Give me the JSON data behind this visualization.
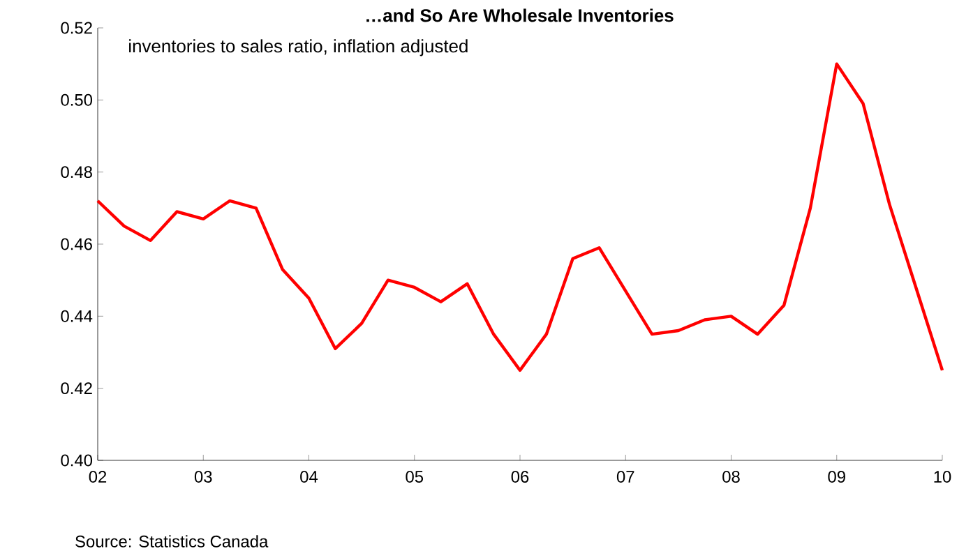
{
  "chart_data": {
    "type": "line",
    "title": "…and So Are Wholesale Inventories",
    "subtitle": "inventories to sales ratio, inflation adjusted",
    "annotations": [
      "Source: Statistics Canada"
    ],
    "x": [
      2002,
      2002.25,
      2002.5,
      2002.75,
      2003,
      2003.25,
      2003.5,
      2003.75,
      2004,
      2004.25,
      2004.5,
      2004.75,
      2005,
      2005.25,
      2005.5,
      2005.75,
      2006,
      2006.25,
      2006.5,
      2006.75,
      2007,
      2007.25,
      2007.5,
      2007.75,
      2008,
      2008.25,
      2008.5,
      2008.75,
      2009,
      2009.25,
      2009.5,
      2009.75,
      2010
    ],
    "series": [
      {
        "color": "#ff0000",
        "values": [
          0.472,
          0.465,
          0.461,
          0.469,
          0.467,
          0.472,
          0.47,
          0.453,
          0.445,
          0.431,
          0.438,
          0.45,
          0.448,
          0.444,
          0.449,
          0.435,
          0.425,
          0.435,
          0.456,
          0.459,
          0.447,
          0.435,
          0.436,
          0.439,
          0.44,
          0.435,
          0.443,
          0.47,
          0.51,
          0.499,
          0.471,
          0.448,
          0.425
        ]
      }
    ],
    "xlim": [
      2002,
      2010
    ],
    "xticks": [
      {
        "value": 2002,
        "label": "02"
      },
      {
        "value": 2003,
        "label": "03"
      },
      {
        "value": 2004,
        "label": "04"
      },
      {
        "value": 2005,
        "label": "05"
      },
      {
        "value": 2006,
        "label": "06"
      },
      {
        "value": 2007,
        "label": "07"
      },
      {
        "value": 2008,
        "label": "08"
      },
      {
        "value": 2009,
        "label": "09"
      },
      {
        "value": 2010,
        "label": "10"
      }
    ],
    "ylim": [
      0.4,
      0.52
    ],
    "yticks": [
      {
        "value": 0.4,
        "label": "0.40"
      },
      {
        "value": 0.42,
        "label": "0.42"
      },
      {
        "value": 0.44,
        "label": "0.44"
      },
      {
        "value": 0.46,
        "label": "0.46"
      },
      {
        "value": 0.48,
        "label": "0.48"
      },
      {
        "value": 0.5,
        "label": "0.50"
      },
      {
        "value": 0.52,
        "label": "0.52"
      }
    ],
    "grid": false,
    "legend": false,
    "marker": "none",
    "line_style": "solid"
  }
}
